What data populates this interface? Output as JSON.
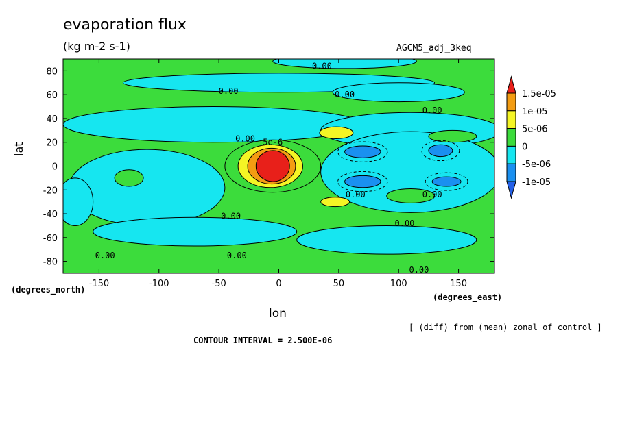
{
  "chart_data": {
    "type": "contour",
    "title": "evaporation flux",
    "units": "(kg m-2 s-1)",
    "run_name": "AGCM5_adj_3keq",
    "xlabel": "lon",
    "ylabel": "lat",
    "x_unit_label": "(degrees_east)",
    "y_unit_label": "(degrees_north)",
    "xlim": [
      -180,
      180
    ],
    "ylim": [
      -90,
      90
    ],
    "x_ticks": [
      -150,
      -100,
      -50,
      0,
      50,
      100,
      150
    ],
    "y_ticks": [
      80,
      60,
      40,
      20,
      0,
      -20,
      -40,
      -60,
      -80
    ],
    "x_tick_labels": [
      "-150",
      "-100",
      "-50",
      "0",
      "50",
      "100",
      "150"
    ],
    "y_tick_labels": [
      "80",
      "60",
      "40",
      "20",
      "0",
      "-20",
      "-40",
      "-60",
      "-80"
    ],
    "note": "[ (diff) from (mean) zonal of control ]",
    "contour_interval": "CONTOUR INTERVAL = 2.500E-06",
    "colorbar": {
      "levels": [
        "1.5e-05",
        "1e-05",
        "5e-06",
        "0",
        "-5e-06",
        "-1e-05"
      ],
      "colors": [
        "#e8201a",
        "#f39c12",
        "#f5f525",
        "#3cdc3c",
        "#16e6f0",
        "#1a90f0",
        "#2460e8"
      ]
    },
    "contour_labels": [
      {
        "text": "0.00",
        "lon": 36,
        "lat": 84
      },
      {
        "text": "0.00",
        "lon": -42,
        "lat": 63
      },
      {
        "text": "0.00",
        "lon": 55,
        "lat": 60
      },
      {
        "text": "0.00",
        "lon": 128,
        "lat": 47
      },
      {
        "text": "0.00",
        "lon": -28,
        "lat": 23
      },
      {
        "text": "5e-6",
        "lon": -5,
        "lat": 20
      },
      {
        "text": "0.00",
        "lon": 64,
        "lat": -24
      },
      {
        "text": "0.00",
        "lon": 128,
        "lat": -24
      },
      {
        "text": "0.00",
        "lon": -40,
        "lat": -42
      },
      {
        "text": "0.00",
        "lon": 105,
        "lat": -48
      },
      {
        "text": "0.00",
        "lon": -145,
        "lat": -75
      },
      {
        "text": "0.00",
        "lon": -35,
        "lat": -75
      },
      {
        "text": "0.00",
        "lon": 117,
        "lat": -87
      }
    ],
    "features": [
      {
        "shape": "ellipse",
        "lon": 55,
        "lat": 88,
        "rlon": 60,
        "rlat": 6,
        "color": "#16e6f0"
      },
      {
        "shape": "ellipse",
        "lon": 0,
        "lat": 70,
        "rlon": 130,
        "rlat": 8,
        "color": "#16e6f0"
      },
      {
        "shape": "ellipse",
        "lon": 100,
        "lat": 62,
        "rlon": 55,
        "rlat": 8,
        "color": "#16e6f0"
      },
      {
        "shape": "ellipse",
        "lon": -55,
        "lat": 35,
        "rlon": 125,
        "rlat": 15,
        "color": "#16e6f0"
      },
      {
        "shape": "ellipse",
        "lon": 110,
        "lat": 30,
        "rlon": 75,
        "rlat": 15,
        "color": "#16e6f0"
      },
      {
        "shape": "ellipse",
        "lon": -110,
        "lat": -18,
        "rlon": 65,
        "rlat": 32,
        "color": "#16e6f0"
      },
      {
        "shape": "ellipse",
        "lon": 110,
        "lat": -5,
        "rlon": 75,
        "rlat": 34,
        "color": "#16e6f0"
      },
      {
        "shape": "ellipse",
        "lon": -70,
        "lat": -55,
        "rlon": 85,
        "rlat": 12,
        "color": "#16e6f0"
      },
      {
        "shape": "ellipse",
        "lon": 90,
        "lat": -62,
        "rlon": 75,
        "rlat": 12,
        "color": "#16e6f0"
      },
      {
        "shape": "ellipse",
        "lon": -170,
        "lat": -30,
        "rlon": 15,
        "rlat": 20,
        "color": "#16e6f0"
      },
      {
        "shape": "ellipse",
        "lon": -5,
        "lat": 0,
        "rlon": 40,
        "rlat": 22,
        "color": "#3cdc3c"
      },
      {
        "shape": "ellipse",
        "lon": -125,
        "lat": -10,
        "rlon": 12,
        "rlat": 7,
        "color": "#3cdc3c"
      },
      {
        "shape": "ellipse",
        "lon": 145,
        "lat": 25,
        "rlon": 20,
        "rlat": 5,
        "color": "#3cdc3c"
      },
      {
        "shape": "ellipse",
        "lon": 110,
        "lat": -25,
        "rlon": 20,
        "rlat": 6,
        "color": "#3cdc3c"
      },
      {
        "shape": "ellipse",
        "lon": 48,
        "lat": 28,
        "rlon": 14,
        "rlat": 5,
        "color": "#f5f525"
      },
      {
        "shape": "ellipse",
        "lon": 47,
        "lat": -30,
        "rlon": 12,
        "rlat": 4,
        "color": "#f5f525"
      },
      {
        "shape": "ellipse",
        "lon": -7,
        "lat": 0,
        "rlon": 27,
        "rlat": 18,
        "color": "#f5f525"
      },
      {
        "shape": "ellipse",
        "lon": -6,
        "lat": 0,
        "rlon": 20,
        "rlat": 15,
        "color": "#f39c12"
      },
      {
        "shape": "ellipse",
        "lon": -5,
        "lat": 0,
        "rlon": 14,
        "rlat": 13,
        "color": "#e8201a"
      },
      {
        "shape": "ellipse",
        "lon": 70,
        "lat": 12,
        "rlon": 15,
        "rlat": 5,
        "color": "#1a90f0"
      },
      {
        "shape": "ellipse",
        "lon": 70,
        "lat": -13,
        "rlon": 15,
        "rlat": 5,
        "color": "#1a90f0"
      },
      {
        "shape": "ellipse",
        "lon": 135,
        "lat": 13,
        "rlon": 10,
        "rlat": 5,
        "color": "#1a90f0"
      },
      {
        "shape": "ellipse",
        "lon": 140,
        "lat": -13,
        "rlon": 12,
        "rlat": 4,
        "color": "#1a90f0"
      }
    ]
  }
}
